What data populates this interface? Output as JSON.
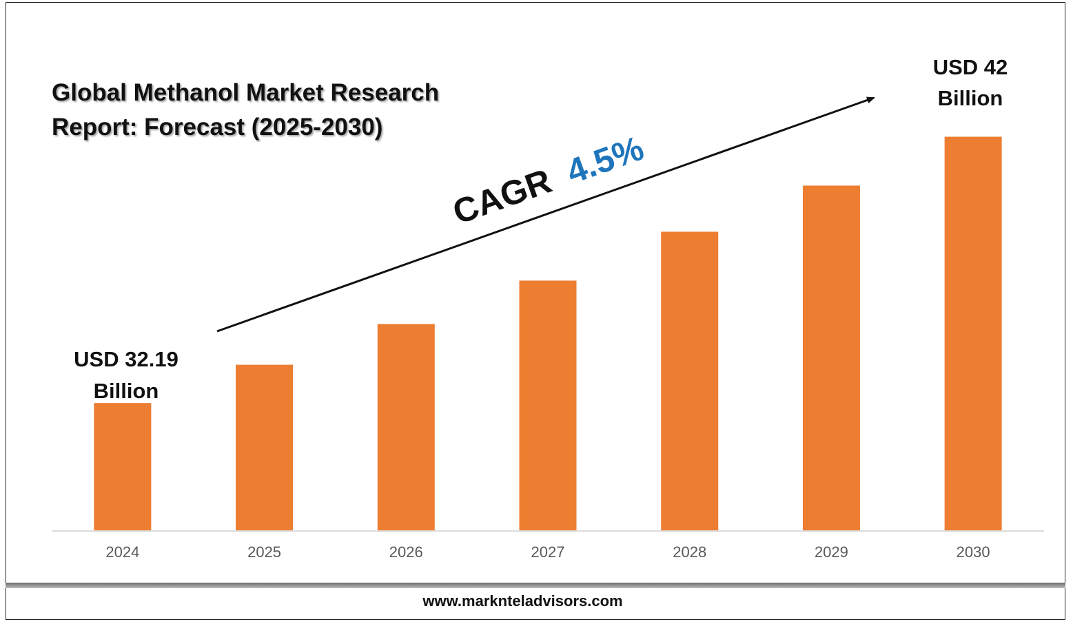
{
  "title_line1": "Global Methanol Market Research",
  "title_line2": "Report: Forecast (2025-2030)",
  "cagr_label": "CAGR",
  "cagr_value": "4.5%",
  "start_label_line1": "USD 32.19",
  "start_label_line2": "Billion",
  "end_label_line1": "USD 42",
  "end_label_line2": "Billion",
  "footer": "www.marknteladvisors.com",
  "colors": {
    "bar": "#ED7D31",
    "cagr_value": "#1F75BB",
    "text": "#111111",
    "axis_text": "#595959"
  },
  "chart_data": {
    "type": "bar",
    "categories": [
      "2024",
      "2025",
      "2026",
      "2027",
      "2028",
      "2029",
      "2030"
    ],
    "values": [
      32.19,
      33.6,
      35.1,
      36.7,
      38.5,
      40.2,
      42
    ],
    "value_unit": "USD Billion",
    "ylim": [
      27.5,
      44.5
    ],
    "grid": false
  }
}
